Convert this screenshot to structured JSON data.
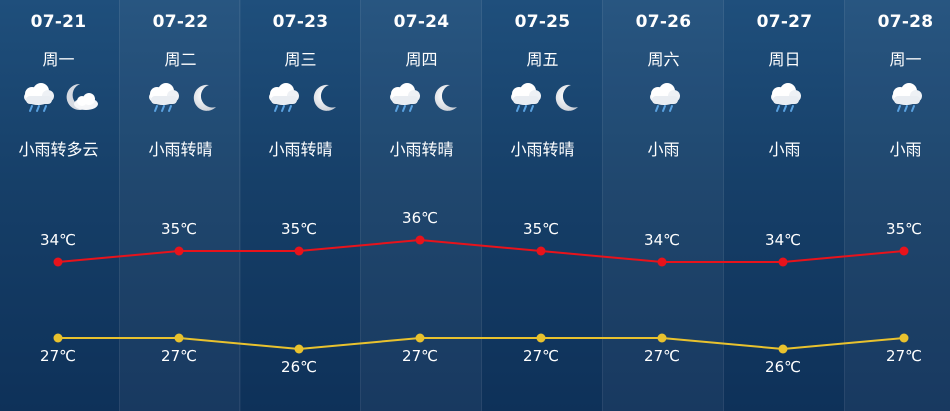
{
  "forecast": [
    {
      "date": "07-21",
      "weekday": "周一",
      "desc": "小雨转多云",
      "day_icon": "rain-cloud-icon",
      "night_icon": "cloudy-moon-icon",
      "high": "34℃",
      "low": "27℃"
    },
    {
      "date": "07-22",
      "weekday": "周二",
      "desc": "小雨转晴",
      "day_icon": "rain-cloud-icon",
      "night_icon": "moon-icon",
      "high": "35℃",
      "low": "27℃"
    },
    {
      "date": "07-23",
      "weekday": "周三",
      "desc": "小雨转晴",
      "day_icon": "rain-cloud-icon",
      "night_icon": "moon-icon",
      "high": "35℃",
      "low": "26℃"
    },
    {
      "date": "07-24",
      "weekday": "周四",
      "desc": "小雨转晴",
      "day_icon": "rain-cloud-icon",
      "night_icon": "moon-icon",
      "high": "36℃",
      "low": "27℃"
    },
    {
      "date": "07-25",
      "weekday": "周五",
      "desc": "小雨转晴",
      "day_icon": "rain-cloud-icon",
      "night_icon": "moon-icon",
      "high": "35℃",
      "low": "27℃"
    },
    {
      "date": "07-26",
      "weekday": "周六",
      "desc": "小雨",
      "day_icon": "rain-cloud-icon",
      "night_icon": "",
      "high": "34℃",
      "low": "27℃"
    },
    {
      "date": "07-27",
      "weekday": "周日",
      "desc": "小雨",
      "day_icon": "rain-cloud-icon",
      "night_icon": "",
      "high": "34℃",
      "low": "26℃"
    },
    {
      "date": "07-28",
      "weekday": "周一",
      "desc": "小雨",
      "day_icon": "rain-cloud-icon",
      "night_icon": "",
      "high": "35℃",
      "low": "27℃"
    }
  ],
  "chart_data": {
    "type": "line",
    "categories": [
      "07-21",
      "07-22",
      "07-23",
      "07-24",
      "07-25",
      "07-26",
      "07-27",
      "07-28"
    ],
    "series": [
      {
        "values": [
          34,
          35,
          35,
          36,
          35,
          34,
          34,
          35
        ],
        "color": "#e8131b"
      },
      {
        "values": [
          27,
          27,
          26,
          27,
          27,
          27,
          26,
          27
        ],
        "color": "#e9c22e"
      }
    ]
  }
}
